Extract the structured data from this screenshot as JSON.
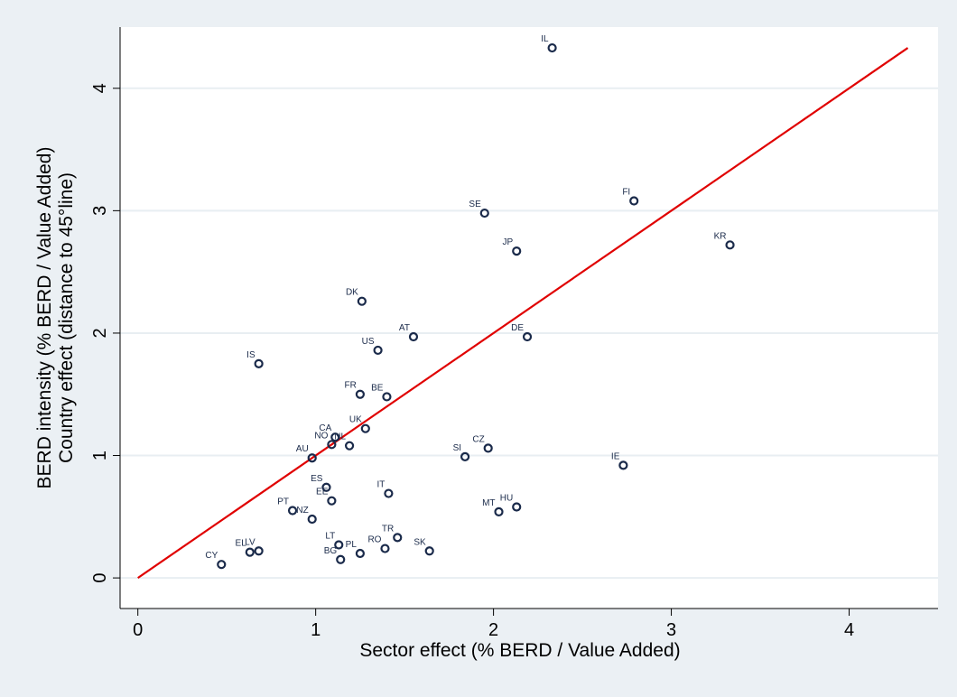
{
  "chart_data": {
    "type": "scatter",
    "xlabel": "Sector effect (% BERD / Value Added)",
    "ylabel": [
      "BERD intensity (% BERD / Value Added)",
      "Country effect (distance to 45°line)"
    ],
    "xlim": [
      -0.1,
      4.5
    ],
    "ylim": [
      -0.25,
      4.5
    ],
    "xticks": [
      0,
      1,
      2,
      3,
      4
    ],
    "yticks": [
      0,
      1,
      2,
      3,
      4
    ],
    "grid": "horizontal",
    "reference_line": {
      "from": [
        0,
        0
      ],
      "to": [
        4.33,
        4.33
      ],
      "color": "#e00000"
    },
    "point_color": "#1a2a4a",
    "points": [
      {
        "label": "IL",
        "x": 2.33,
        "y": 4.33
      },
      {
        "label": "FI",
        "x": 2.79,
        "y": 3.08
      },
      {
        "label": "SE",
        "x": 1.95,
        "y": 2.98
      },
      {
        "label": "KR",
        "x": 3.33,
        "y": 2.72
      },
      {
        "label": "JP",
        "x": 2.13,
        "y": 2.67
      },
      {
        "label": "DK",
        "x": 1.26,
        "y": 2.26
      },
      {
        "label": "AT",
        "x": 1.55,
        "y": 1.97
      },
      {
        "label": "DE",
        "x": 2.19,
        "y": 1.97
      },
      {
        "label": "US",
        "x": 1.35,
        "y": 1.86
      },
      {
        "label": "IS",
        "x": 0.68,
        "y": 1.75
      },
      {
        "label": "FR",
        "x": 1.25,
        "y": 1.5
      },
      {
        "label": "BE",
        "x": 1.4,
        "y": 1.48
      },
      {
        "label": "UK",
        "x": 1.28,
        "y": 1.22
      },
      {
        "label": "CA",
        "x": 1.11,
        "y": 1.15
      },
      {
        "label": "NO",
        "x": 1.09,
        "y": 1.09
      },
      {
        "label": "NL",
        "x": 1.19,
        "y": 1.08
      },
      {
        "label": "CZ",
        "x": 1.97,
        "y": 1.06
      },
      {
        "label": "SI",
        "x": 1.84,
        "y": 0.99
      },
      {
        "label": "AU",
        "x": 0.98,
        "y": 0.98
      },
      {
        "label": "IE",
        "x": 2.73,
        "y": 0.92
      },
      {
        "label": "ES",
        "x": 1.06,
        "y": 0.74
      },
      {
        "label": "IT",
        "x": 1.41,
        "y": 0.69
      },
      {
        "label": "EE",
        "x": 1.09,
        "y": 0.63
      },
      {
        "label": "HU",
        "x": 2.13,
        "y": 0.58
      },
      {
        "label": "PT",
        "x": 0.87,
        "y": 0.55
      },
      {
        "label": "MT",
        "x": 2.03,
        "y": 0.54
      },
      {
        "label": "NZ",
        "x": 0.98,
        "y": 0.48
      },
      {
        "label": "TR",
        "x": 1.46,
        "y": 0.33
      },
      {
        "label": "LT",
        "x": 1.13,
        "y": 0.27
      },
      {
        "label": "RO",
        "x": 1.39,
        "y": 0.24
      },
      {
        "label": "EL",
        "x": 0.63,
        "y": 0.21
      },
      {
        "label": "LV",
        "x": 0.68,
        "y": 0.22
      },
      {
        "label": "PL",
        "x": 1.25,
        "y": 0.2
      },
      {
        "label": "SK",
        "x": 1.64,
        "y": 0.22
      },
      {
        "label": "BG",
        "x": 1.14,
        "y": 0.15
      },
      {
        "label": "CY",
        "x": 0.47,
        "y": 0.11
      }
    ]
  }
}
